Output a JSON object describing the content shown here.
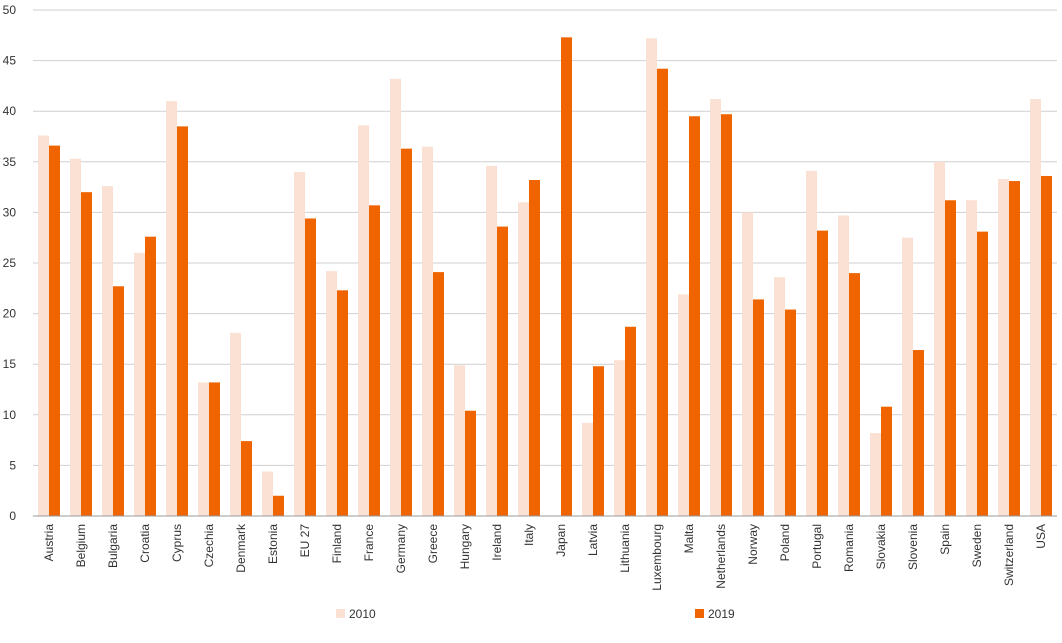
{
  "chart_data": {
    "type": "bar",
    "title": "",
    "xlabel": "",
    "ylabel": "",
    "ylim": [
      0,
      50
    ],
    "yticks": [
      0,
      5,
      10,
      15,
      20,
      25,
      30,
      35,
      40,
      45,
      50
    ],
    "grid": true,
    "legend_position": "bottom",
    "categories": [
      "Austria",
      "Belgium",
      "Bulgaria",
      "Croatia",
      "Cyprus",
      "Czechia",
      "Denmark",
      "Estonia",
      "EU 27",
      "Finland",
      "France",
      "Germany",
      "Greece",
      "Hungary",
      "Ireland",
      "Italy",
      "Japan",
      "Latvia",
      "Lithuania",
      "Luxembourg",
      "Malta",
      "Netherlands",
      "Norway",
      "Poland",
      "Portugal",
      "Romania",
      "Slovakia",
      "Slovenia",
      "Spain",
      "Sweden",
      "Switzerland",
      "USA"
    ],
    "series": [
      {
        "name": "2010",
        "color": "#fbe1d3",
        "values": [
          37.6,
          35.3,
          32.6,
          26.0,
          41.0,
          13.2,
          18.1,
          4.4,
          34.0,
          24.2,
          38.6,
          43.2,
          36.5,
          14.9,
          34.6,
          31.0,
          null,
          9.2,
          15.4,
          47.2,
          21.9,
          41.2,
          30.0,
          23.6,
          34.1,
          29.7,
          8.2,
          27.5,
          35.0,
          31.2,
          33.3,
          41.2
        ]
      },
      {
        "name": "2019",
        "color": "#f06400",
        "values": [
          36.6,
          32.0,
          22.7,
          27.6,
          38.5,
          13.2,
          7.4,
          2.0,
          29.4,
          22.3,
          30.7,
          36.3,
          24.1,
          10.4,
          28.6,
          33.2,
          47.3,
          14.8,
          18.7,
          44.2,
          39.5,
          39.7,
          21.4,
          20.4,
          28.2,
          24.0,
          10.8,
          16.4,
          31.2,
          28.1,
          33.1,
          33.6
        ]
      }
    ]
  }
}
